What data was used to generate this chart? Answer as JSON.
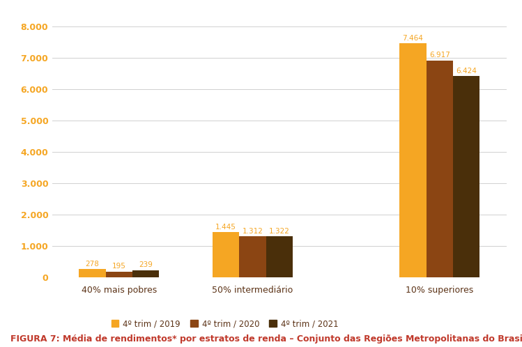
{
  "categories": [
    "40% mais pobres",
    "50% intermediário",
    "10% superiores"
  ],
  "series": {
    "4º trim / 2019": [
      278,
      1445,
      7464
    ],
    "4º trim / 2020": [
      195,
      1312,
      6917
    ],
    "4º trim / 2021": [
      239,
      1322,
      6424
    ]
  },
  "colors": {
    "4º trim / 2019": "#F5A623",
    "4º trim / 2020": "#8B4513",
    "4º trim / 2021": "#4A2F0A"
  },
  "yticks": [
    0,
    1000,
    2000,
    3000,
    4000,
    5000,
    6000,
    7000,
    8000
  ],
  "ytick_labels": [
    "0",
    "1.000",
    "2.000",
    "3.000",
    "4.000",
    "5.000",
    "6.000",
    "7.000",
    "8.000"
  ],
  "ylim": [
    0,
    8400
  ],
  "figure_caption": "FIGURA 7: Média de rendimentos* por estratos de renda – Conjunto das Regiões Metropolitanas do Brasil",
  "caption_color": "#C0392B",
  "caption_fontsize": 9,
  "bar_label_color": "#F5A623",
  "ytick_color": "#F5A623",
  "xtick_color": "#5C3317",
  "background_color": "#FFFFFF",
  "grid_color": "#D0D0D0"
}
